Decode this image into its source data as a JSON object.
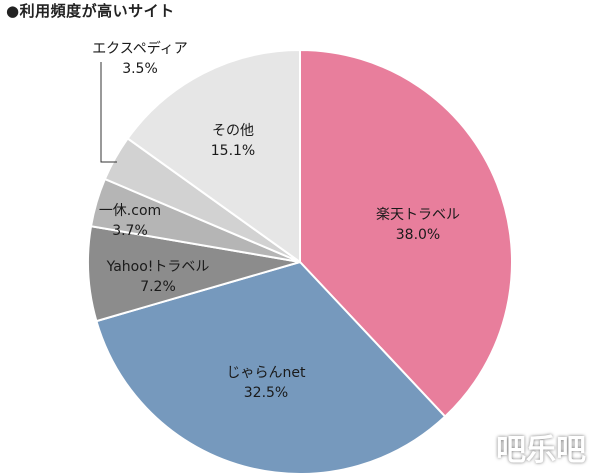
{
  "chart_data": {
    "type": "pie",
    "title": "●利用頻度が高いサイト",
    "slices": [
      {
        "label": "楽天トラベル",
        "value": 38.0,
        "value_label": "38.0%",
        "color": "#e87e9c"
      },
      {
        "label": "じゃらんnet",
        "value": 32.5,
        "value_label": "32.5%",
        "color": "#7699bd"
      },
      {
        "label": "Yahoo!トラベル",
        "value": 7.2,
        "value_label": "7.2%",
        "color": "#8c8c8c"
      },
      {
        "label": "一休.com",
        "value": 3.7,
        "value_label": "3.7%",
        "color": "#b5b5b5"
      },
      {
        "label": "エクスペディア",
        "value": 3.5,
        "value_label": "3.5%",
        "color": "#d2d2d2"
      },
      {
        "label": "その他",
        "value": 15.1,
        "value_label": "15.1%",
        "color": "#e6e6e6"
      }
    ]
  },
  "watermark": "吧乐吧"
}
